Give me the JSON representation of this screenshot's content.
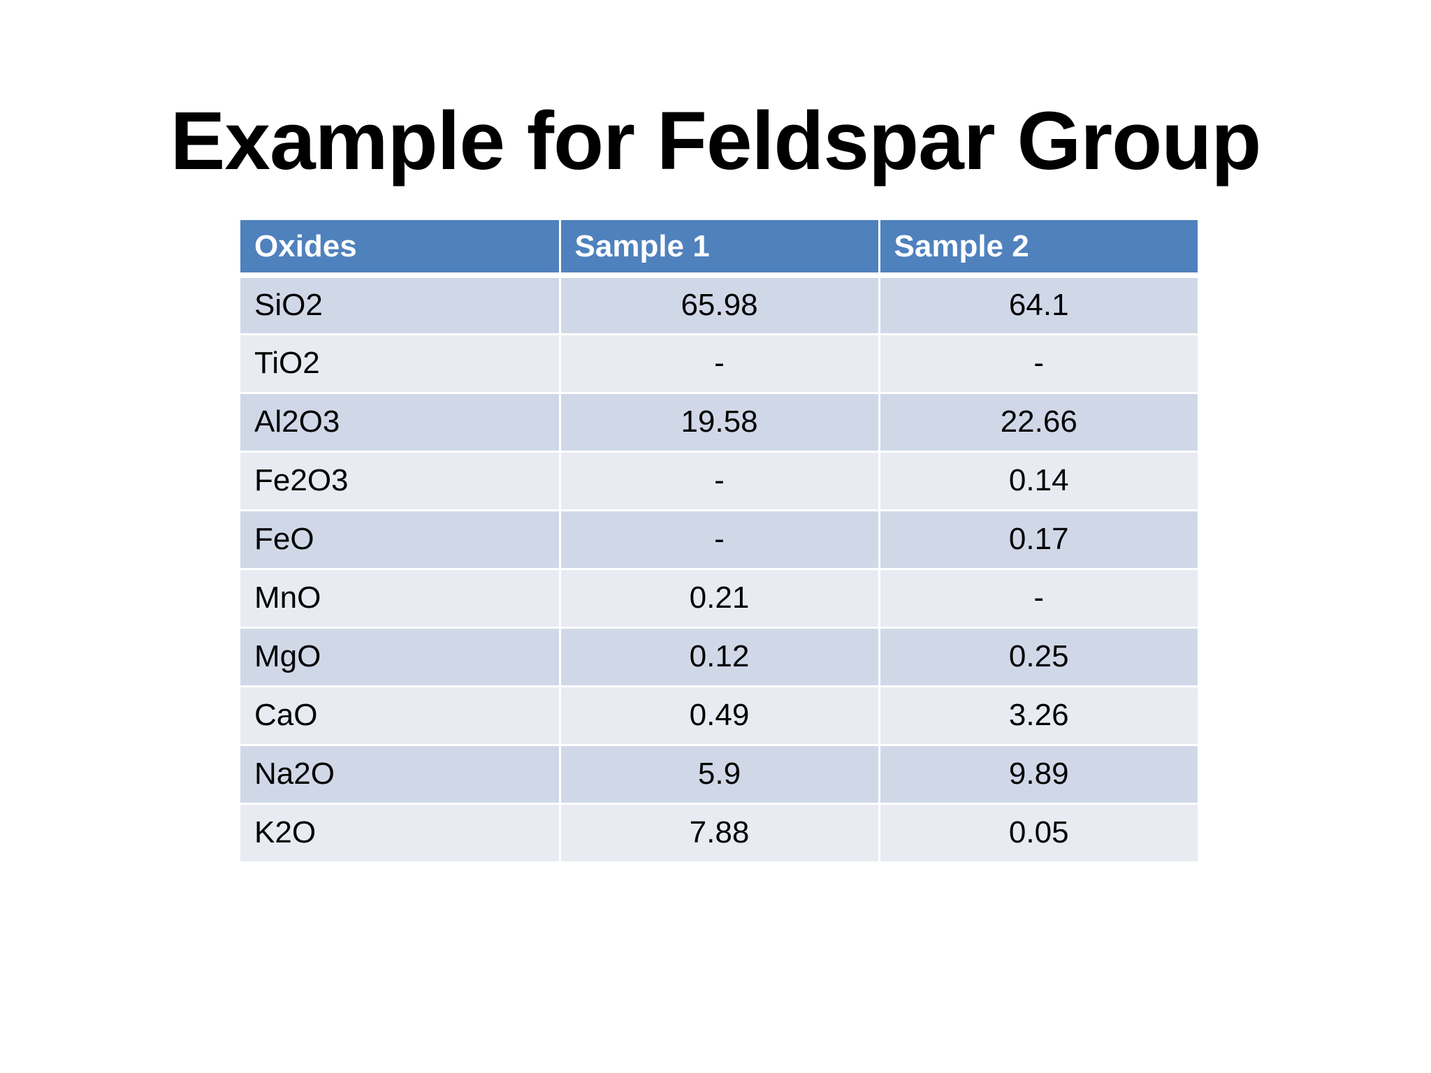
{
  "slide": {
    "title": "Example for Feldspar Group"
  },
  "table": {
    "headers": [
      "Oxides",
      "Sample 1",
      "Sample 2"
    ],
    "rows": [
      [
        "SiO2",
        "65.98",
        "64.1"
      ],
      [
        "TiO2",
        "-",
        "-"
      ],
      [
        "Al2O3",
        "19.58",
        "22.66"
      ],
      [
        "Fe2O3",
        "-",
        "0.14"
      ],
      [
        "FeO",
        "-",
        "0.17"
      ],
      [
        "MnO",
        "0.21",
        "-"
      ],
      [
        "MgO",
        "0.12",
        "0.25"
      ],
      [
        "CaO",
        "0.49",
        "3.26"
      ],
      [
        "Na2O",
        "5.9",
        "9.89"
      ],
      [
        "K2O",
        "7.88",
        "0.05"
      ]
    ]
  },
  "colors": {
    "header_bg": "#4f81bd",
    "row_band_dark": "#d0d8e8",
    "row_band_light": "#e9ebf2"
  }
}
